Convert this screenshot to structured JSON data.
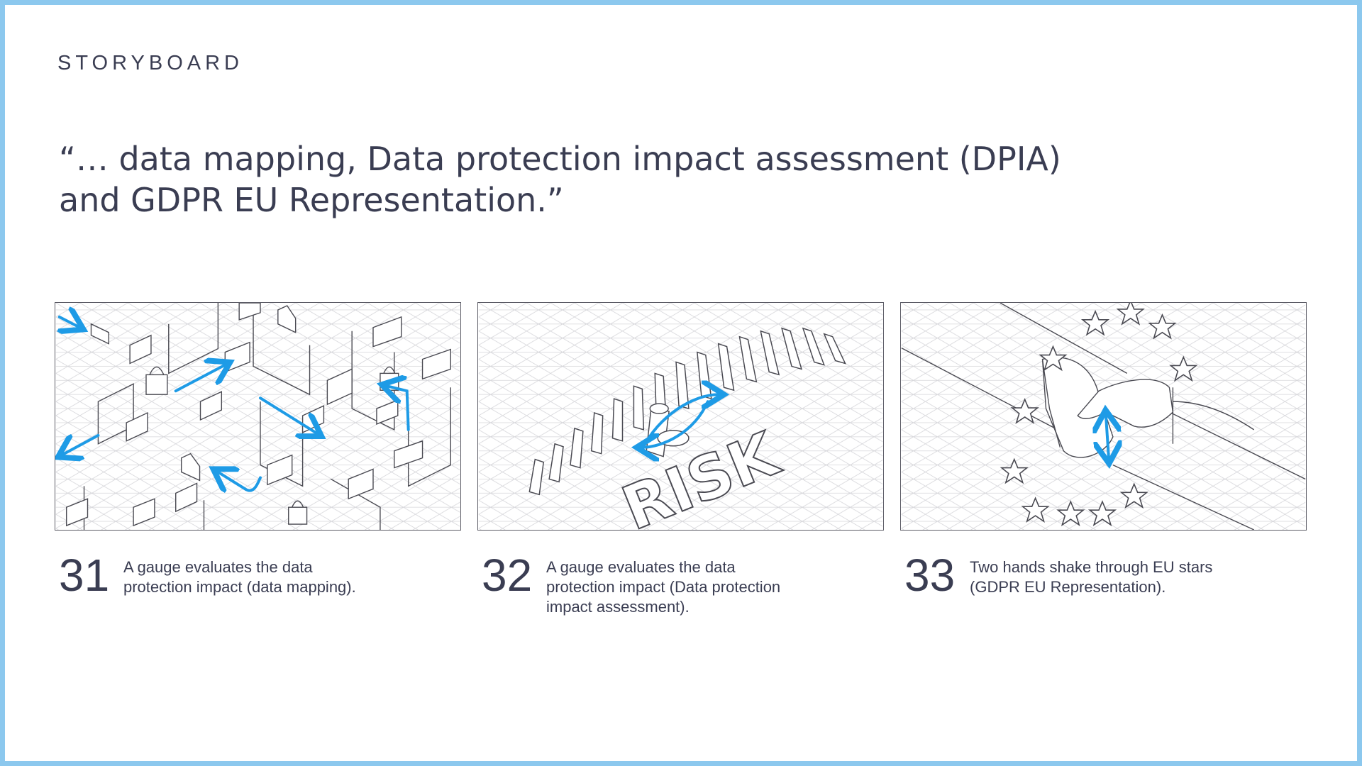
{
  "header": {
    "kicker": "STORYBOARD",
    "quote_line1": "“… data mapping, Data protection impact assessment (DPIA)",
    "quote_line2": "and GDPR EU Representation.”"
  },
  "frames": [
    {
      "number": "31",
      "caption_line1": "A gauge evaluates the data",
      "caption_line2": "protection impact (data mapping).",
      "caption_line3": ""
    },
    {
      "number": "32",
      "caption_line1": "A gauge evaluates the data",
      "caption_line2": "protection impact (Data protection",
      "caption_line3": "impact assessment)."
    },
    {
      "number": "33",
      "caption_line1": "Two hands shake through EU stars",
      "caption_line2": "(GDPR EU Representation).",
      "caption_line3": ""
    }
  ],
  "illustration_text": {
    "risk_word": "RISK"
  },
  "colors": {
    "border": "#8cc8ee",
    "text": "#3a3d52",
    "arrow": "#1e9be6",
    "sketch": "#4a4a52",
    "grid": "#d4d4d8"
  }
}
